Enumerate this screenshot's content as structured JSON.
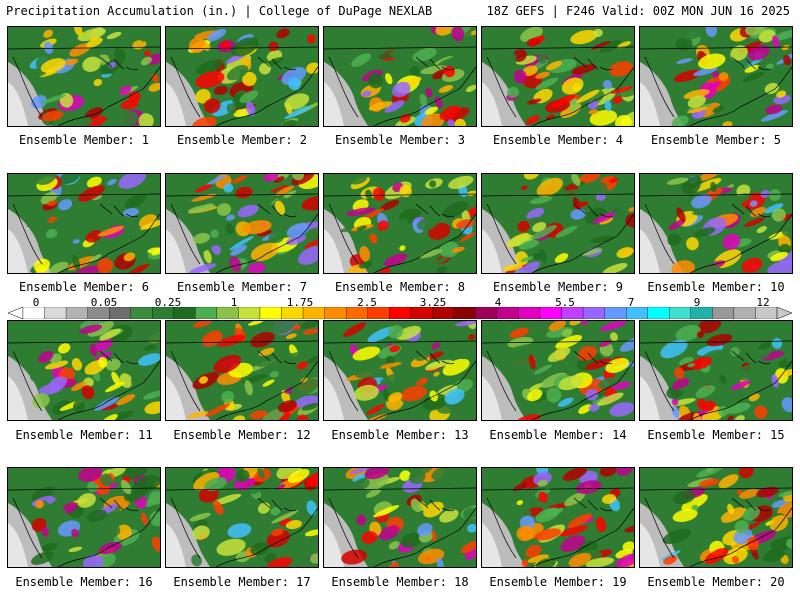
{
  "header": {
    "title_left": "Precipitation Accumulation (in.) | College of DuPage NEXLAB",
    "title_right": "18Z GEFS | F246 Valid: 00Z MON JUN 16 2025"
  },
  "panels": [
    "Ensemble Member: 1",
    "Ensemble Member: 2",
    "Ensemble Member: 3",
    "Ensemble Member: 4",
    "Ensemble Member: 5",
    "Ensemble Member: 6",
    "Ensemble Member: 7",
    "Ensemble Member: 8",
    "Ensemble Member: 9",
    "Ensemble Member: 10",
    "Ensemble Member: 11",
    "Ensemble Member: 12",
    "Ensemble Member: 13",
    "Ensemble Member: 14",
    "Ensemble Member: 15",
    "Ensemble Member: 16",
    "Ensemble Member: 17",
    "Ensemble Member: 18",
    "Ensemble Member: 19",
    "Ensemble Member: 20"
  ],
  "colorbar": {
    "labels": [
      "0",
      "0.05",
      "0.25",
      "1",
      "1.75",
      "2.5",
      "3.25",
      "4",
      "5.5",
      "7",
      "9",
      "12"
    ],
    "colors": [
      "#ffffff",
      "#d9d9d9",
      "#b3b3b3",
      "#8c8c8c",
      "#6e6e6e",
      "#3c8c3c",
      "#2e7d32",
      "#1f6b1f",
      "#4caf50",
      "#8bc34a",
      "#c6e23a",
      "#ffff00",
      "#ffd700",
      "#ffb300",
      "#ff8c00",
      "#ff6a00",
      "#ff3d00",
      "#ff0000",
      "#d50000",
      "#b00000",
      "#8b0000",
      "#a0005a",
      "#c2008f",
      "#e000c0",
      "#ff00ff",
      "#c040ff",
      "#9966ff",
      "#6699ff",
      "#40c0ff",
      "#00ffff",
      "#40e0d0",
      "#20b2aa",
      "#999999",
      "#b0b0b0",
      "#c8c8c8"
    ]
  }
}
